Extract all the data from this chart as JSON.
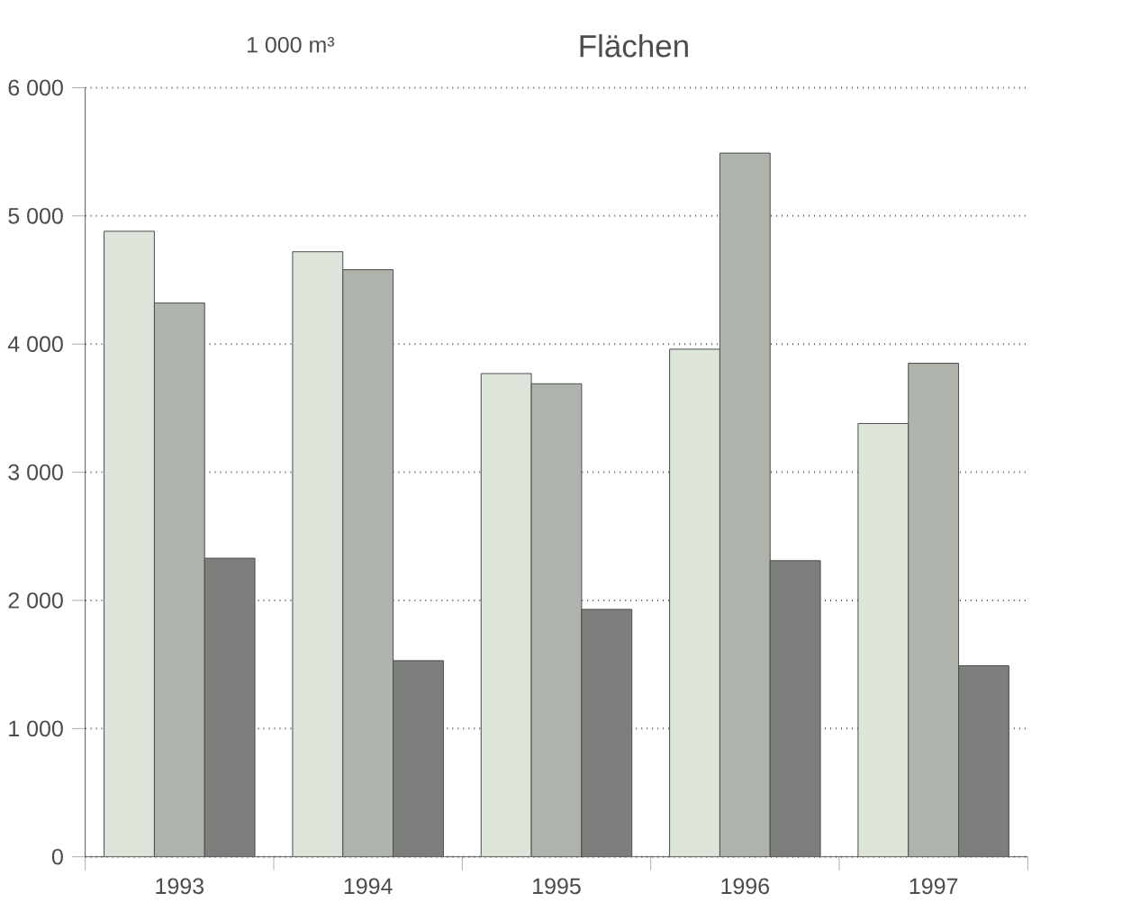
{
  "chart_data": {
    "type": "bar",
    "title": "Flächen",
    "ylabel": "1 000 m³",
    "categories": [
      "1993",
      "1994",
      "1995",
      "1996",
      "1997"
    ],
    "series": [
      {
        "color": "#dde5db",
        "values": [
          4880,
          4720,
          3770,
          3960,
          3380
        ]
      },
      {
        "color": "#aeb3ac",
        "values": [
          4320,
          4580,
          3690,
          5490,
          3850
        ]
      },
      {
        "color": "#7d7f7c",
        "values": [
          2330,
          1530,
          1930,
          2310,
          1490
        ]
      }
    ],
    "ylim": [
      0,
      6000
    ],
    "yticks": [
      {
        "value": 0,
        "label": "0"
      },
      {
        "value": 1000,
        "label": "1 000"
      },
      {
        "value": 2000,
        "label": "2 000"
      },
      {
        "value": 3000,
        "label": "3 000"
      },
      {
        "value": 4000,
        "label": "4 000"
      },
      {
        "value": 5000,
        "label": "5 000"
      },
      {
        "value": 6000,
        "label": "6 000"
      }
    ],
    "grid": "y"
  }
}
